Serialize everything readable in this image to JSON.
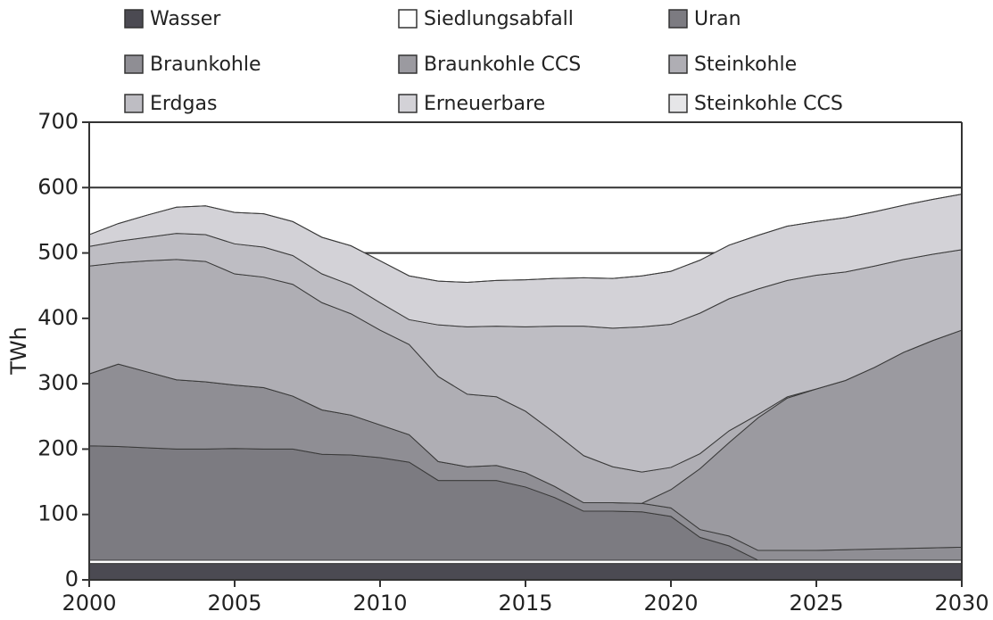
{
  "chart_data": {
    "type": "stacked-area",
    "y_label": "TWh",
    "x": [
      2000,
      2001,
      2002,
      2003,
      2004,
      2005,
      2006,
      2007,
      2008,
      2009,
      2010,
      2011,
      2012,
      2013,
      2014,
      2015,
      2016,
      2017,
      2018,
      2019,
      2020,
      2021,
      2022,
      2023,
      2024,
      2025,
      2026,
      2027,
      2028,
      2029,
      2030
    ],
    "xlim": [
      2000,
      2030
    ],
    "xticks": [
      2000,
      2005,
      2010,
      2015,
      2020,
      2025,
      2030
    ],
    "ylim": [
      0,
      700
    ],
    "yticks": [
      0,
      100,
      200,
      300,
      400,
      500,
      600,
      700
    ],
    "grid": true,
    "series": [
      {
        "name": "Wasser",
        "color": "#4b4a52",
        "values": [
          25,
          25,
          25,
          25,
          25,
          25,
          25,
          25,
          25,
          25,
          25,
          25,
          25,
          25,
          25,
          25,
          25,
          25,
          25,
          25,
          25,
          25,
          25,
          25,
          25,
          25,
          25,
          25,
          25,
          25,
          25
        ]
      },
      {
        "name": "Siedlungsabfall",
        "color": "#ffffff",
        "values": [
          5,
          5,
          5,
          5,
          5,
          5,
          5,
          5,
          5,
          5,
          5,
          5,
          5,
          5,
          5,
          5,
          5,
          5,
          5,
          5,
          5,
          5,
          5,
          5,
          5,
          5,
          5,
          5,
          5,
          5,
          5
        ]
      },
      {
        "name": "Uran",
        "color": "#7c7b81",
        "values": [
          175,
          174,
          172,
          170,
          170,
          171,
          170,
          170,
          162,
          161,
          157,
          150,
          122,
          122,
          122,
          112,
          96,
          75,
          75,
          74,
          67,
          35,
          22,
          0,
          0,
          0,
          0,
          0,
          0,
          0,
          0
        ]
      },
      {
        "name": "Braunkohle",
        "color": "#8f8e94",
        "values": [
          110,
          126,
          116,
          106,
          103,
          97,
          94,
          81,
          68,
          61,
          50,
          42,
          29,
          21,
          23,
          22,
          17,
          13,
          13,
          13,
          13,
          12,
          15,
          15,
          15,
          15,
          16,
          17,
          18,
          19,
          20
        ]
      },
      {
        "name": "Braunkohle CCS",
        "color": "#9b9aa0",
        "values": [
          0,
          0,
          0,
          0,
          0,
          0,
          0,
          0,
          0,
          0,
          0,
          0,
          0,
          0,
          0,
          0,
          0,
          0,
          0,
          0,
          28,
          93,
          143,
          203,
          233,
          247,
          259,
          278,
          300,
          317,
          332
        ]
      },
      {
        "name": "Steinkohle",
        "color": "#afaeb4",
        "values": [
          165,
          155,
          170,
          184,
          184,
          170,
          169,
          171,
          164,
          155,
          145,
          138,
          130,
          111,
          105,
          94,
          82,
          72,
          55,
          48,
          34,
          23,
          18,
          5,
          2,
          0,
          0,
          0,
          0,
          0,
          0
        ]
      },
      {
        "name": "Erdgas",
        "color": "#bebdc3",
        "values": [
          30,
          33,
          36,
          40,
          41,
          46,
          46,
          44,
          44,
          44,
          42,
          38,
          79,
          103,
          108,
          129,
          163,
          198,
          212,
          222,
          219,
          215,
          202,
          192,
          178,
          174,
          166,
          155,
          142,
          132,
          123
        ]
      },
      {
        "name": "Erneuerbare",
        "color": "#d3d2d7",
        "values": [
          18,
          27,
          34,
          40,
          44,
          48,
          51,
          52,
          56,
          60,
          64,
          67,
          67,
          68,
          70,
          72,
          73,
          74,
          76,
          78,
          81,
          81,
          82,
          82,
          83,
          82,
          83,
          83,
          83,
          84,
          85
        ]
      },
      {
        "name": "Steinkohle CCS",
        "color": "#e6e6e8",
        "values": [
          0,
          0,
          0,
          0,
          0,
          0,
          0,
          0,
          0,
          0,
          0,
          0,
          0,
          0,
          0,
          0,
          0,
          0,
          0,
          0,
          0,
          0,
          0,
          0,
          0,
          0,
          0,
          0,
          0,
          0,
          0
        ]
      }
    ]
  }
}
